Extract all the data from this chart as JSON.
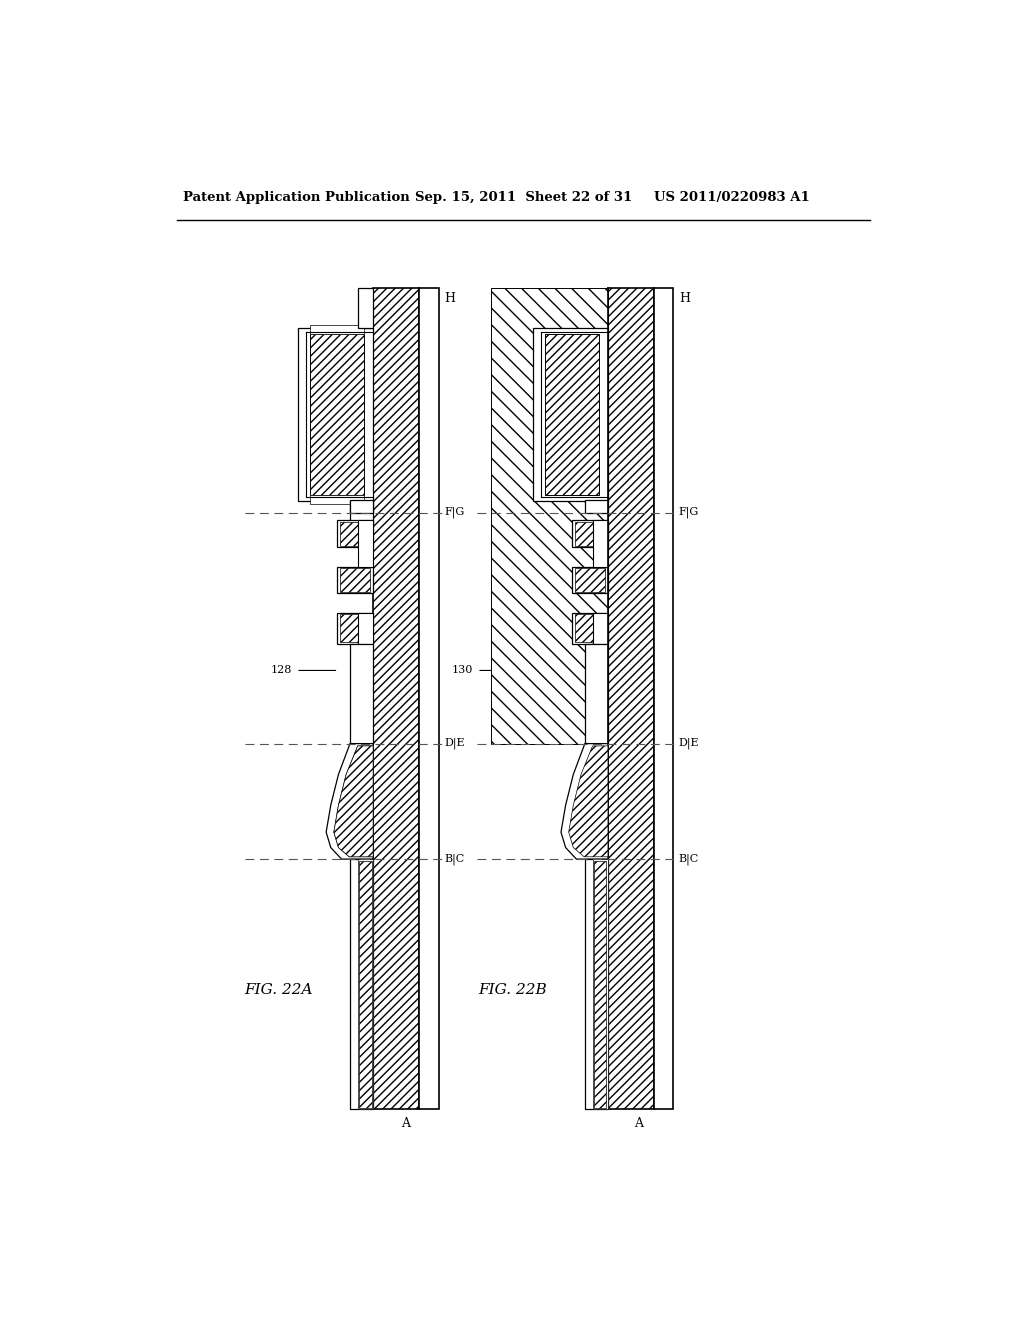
{
  "header_left": "Patent Application Publication",
  "header_mid": "Sep. 15, 2011  Sheet 22 of 31",
  "header_right": "US 2011/0220983 A1",
  "fig_a_label": "FIG. 22A",
  "fig_b_label": "FIG. 22B",
  "label_128": "128",
  "label_130": "130",
  "bg_color": "#ffffff",
  "line_color": "#000000"
}
